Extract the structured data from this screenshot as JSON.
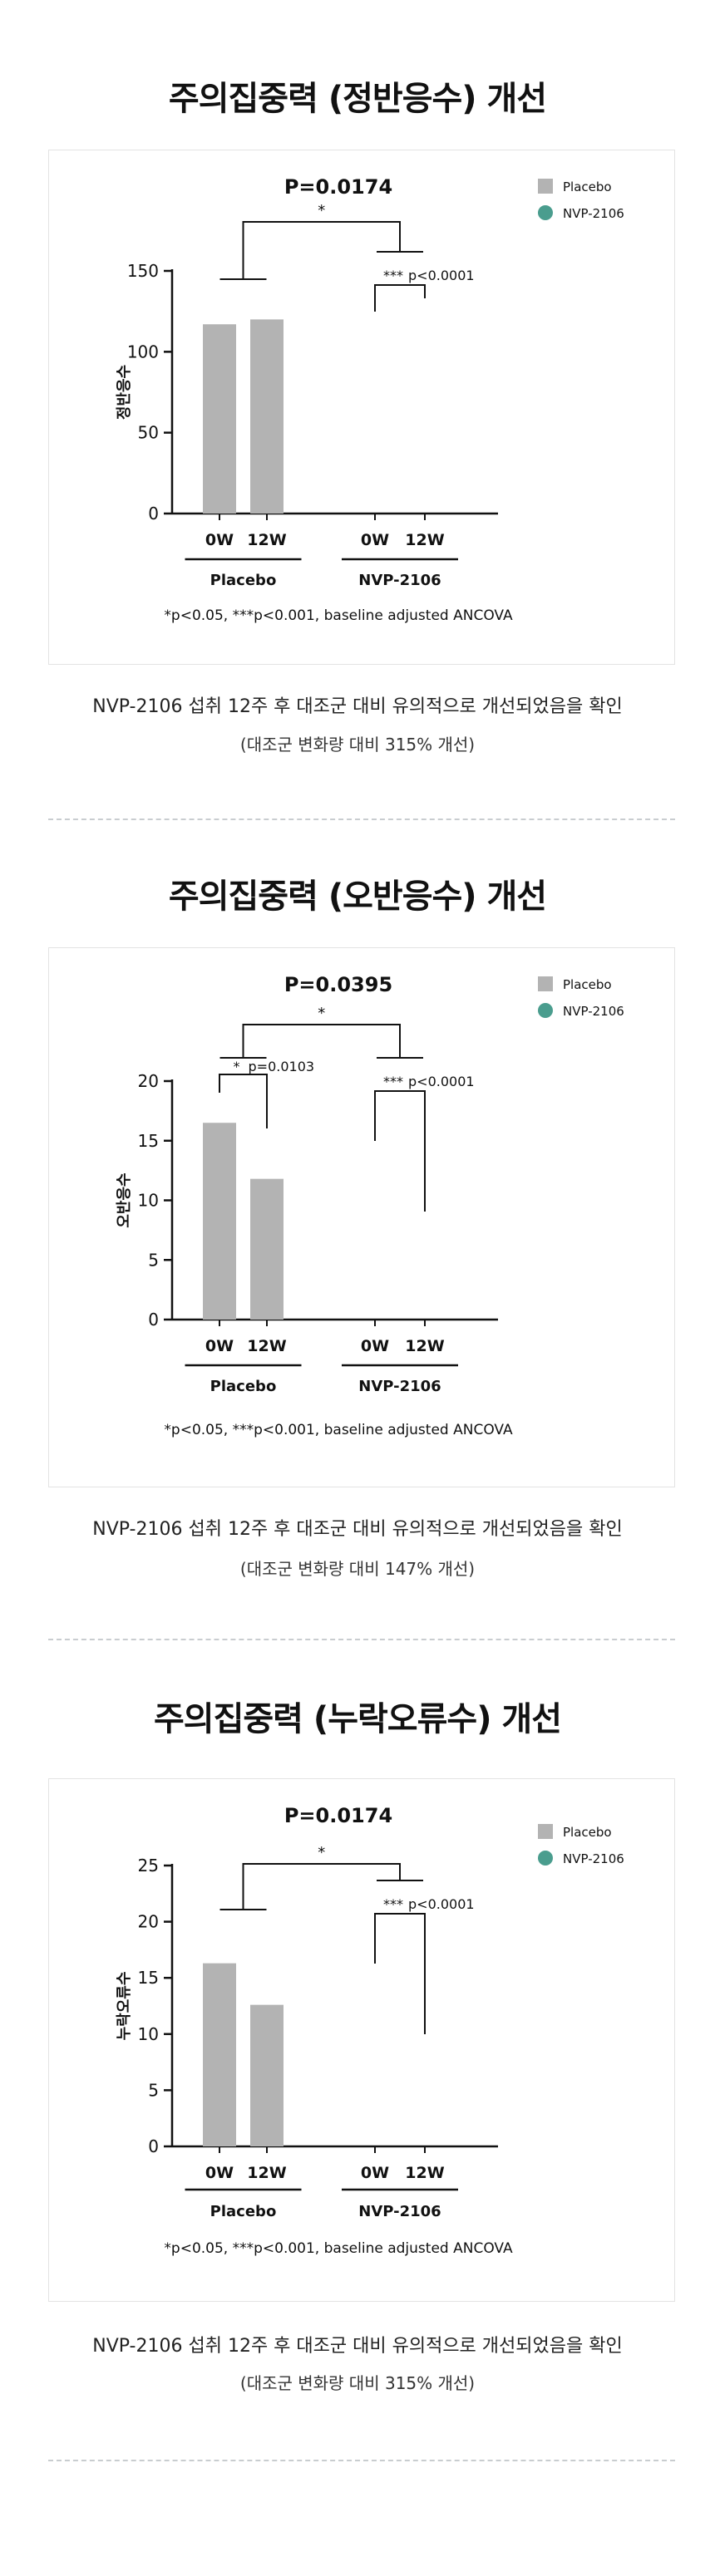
{
  "common": {
    "legend": [
      {
        "name": "Placebo",
        "color": "#b3b3b3",
        "shape": "square"
      },
      {
        "name": "NVP-2106",
        "color": "#4a9d8e",
        "shape": "circle"
      }
    ],
    "footnote": "*p<0.05, ***p<0.001, baseline adjusted ANCOVA",
    "description": "NVP-2106 섭취 12주 후 대조군 대비 유의적으로 개선되었음을 확인"
  },
  "sections": [
    {
      "title": "주의집중력 (정반응수) 개선",
      "subnote": "(대조군 변화량 대비 315% 개선)"
    },
    {
      "title": "주의집중력 (오반응수) 개선",
      "subnote": "(대조군 변화량 대비 147% 개선)"
    },
    {
      "title": "주의집중력 (누락오류수) 개선",
      "subnote": "(대조군 변화량 대비 315% 개선)"
    }
  ],
  "chart_data": [
    {
      "type": "bar",
      "title": "P=0.0174",
      "ylabel": "정반응수",
      "ylim": [
        0,
        150
      ],
      "yticks": [
        0,
        50,
        100,
        150
      ],
      "categories": [
        "0W",
        "12W",
        "0W",
        "12W"
      ],
      "groups": [
        "Placebo",
        "NVP-2106"
      ],
      "series": [
        {
          "name": "Placebo",
          "values": [
            117,
            120,
            null,
            null
          ]
        },
        {
          "name": "NVP-2106",
          "values": [
            null,
            null,
            0,
            0
          ]
        }
      ],
      "annotations": {
        "between_groups": "*",
        "within_placebo": "",
        "within_nvp": "***",
        "within_nvp_p": "p<0.0001"
      }
    },
    {
      "type": "bar",
      "title": "P=0.0395",
      "ylabel": "오반응수",
      "ylim": [
        0,
        20
      ],
      "yticks": [
        0,
        5,
        10,
        15,
        20
      ],
      "categories": [
        "0W",
        "12W",
        "0W",
        "12W"
      ],
      "groups": [
        "Placebo",
        "NVP-2106"
      ],
      "series": [
        {
          "name": "Placebo",
          "values": [
            16.5,
            11.8,
            null,
            null
          ]
        },
        {
          "name": "NVP-2106",
          "values": [
            null,
            null,
            0,
            0
          ]
        }
      ],
      "annotations": {
        "between_groups": "*",
        "within_placebo": "*",
        "within_placebo_p": "p=0.0103",
        "within_nvp": "***",
        "within_nvp_p": "p<0.0001"
      }
    },
    {
      "type": "bar",
      "title": "P=0.0174",
      "ylabel": "누락오류수",
      "ylim": [
        0,
        25
      ],
      "yticks": [
        0,
        5,
        10,
        15,
        20,
        25
      ],
      "categories": [
        "0W",
        "12W",
        "0W",
        "12W"
      ],
      "groups": [
        "Placebo",
        "NVP-2106"
      ],
      "series": [
        {
          "name": "Placebo",
          "values": [
            16.3,
            12.6,
            null,
            null
          ]
        },
        {
          "name": "NVP-2106",
          "values": [
            null,
            null,
            0,
            0
          ]
        }
      ],
      "annotations": {
        "between_groups": "*",
        "within_placebo": "",
        "within_nvp": "***",
        "within_nvp_p": "p<0.0001"
      }
    }
  ]
}
